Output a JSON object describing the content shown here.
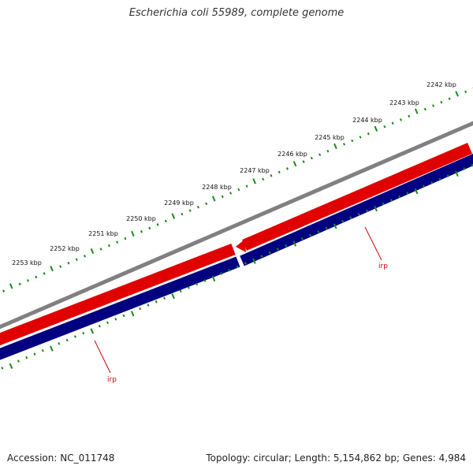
{
  "title": "Escherichia coli 55989, complete genome",
  "footer": {
    "accession": "Accession: NC_011748",
    "summary": "Topology: circular; Length: 5,154,862 bp; Genes: 4,984"
  },
  "ruler": {
    "labels": [
      "2242 kbp",
      "2243 kbp",
      "2244 kbp",
      "2245 kbp",
      "2246 kbp",
      "2247 kbp",
      "2248 kbp",
      "2249 kbp",
      "2250 kbp",
      "2251 kbp",
      "2252 kbp",
      "2253 kbp"
    ],
    "tick_color": "#1a8a1a"
  },
  "features": [
    {
      "label": "irp",
      "strand": "reverse",
      "color": "#cc0000"
    },
    {
      "label": "irp",
      "strand": "reverse",
      "color": "#cc0000"
    }
  ],
  "colors": {
    "backbone": "#808080",
    "forward_track": "#e00000",
    "reverse_track": "#000080",
    "label": "#cc0000",
    "ticks": "#1a8a1a"
  }
}
